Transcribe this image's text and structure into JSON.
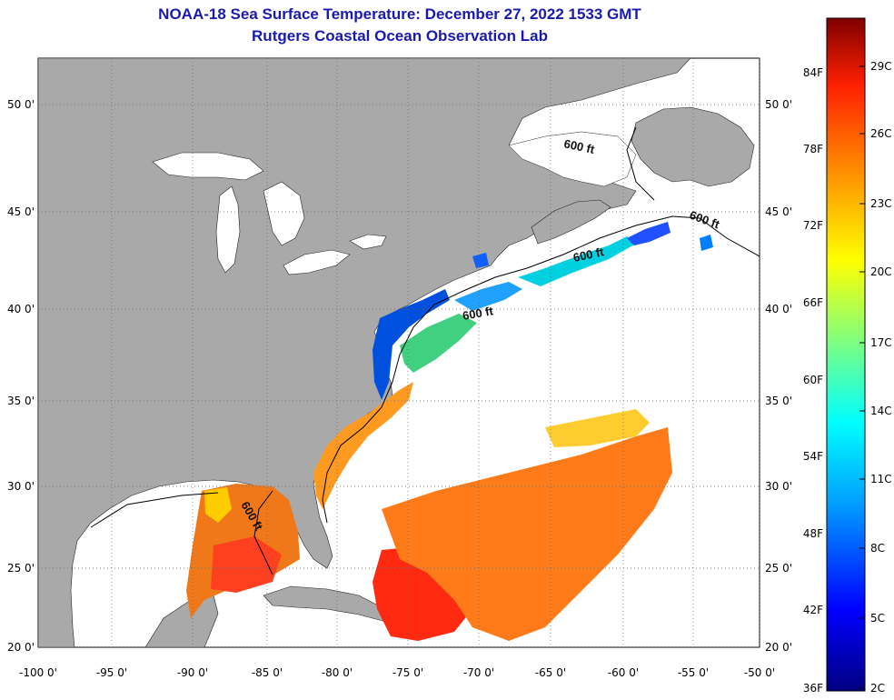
{
  "title": {
    "line1": "NOAA-18 Sea Surface Temperature:  December 27, 2022 1533 GMT",
    "line2": "Rutgers Coastal Ocean Observation Lab"
  },
  "axes": {
    "longitude_labels": [
      "-100 0'",
      "-95 0'",
      "-90 0'",
      "-85 0'",
      "-80 0'",
      "-75 0'",
      "-70 0'",
      "-65 0'",
      "-60 0'",
      "-55 0'",
      "-50 0'"
    ],
    "latitude_labels": [
      "50 0'",
      "45 0'",
      "40 0'",
      "35 0'",
      "30 0'",
      "25 0'",
      "20 0'"
    ]
  },
  "contour_labels": [
    "600 ft",
    "600 ft",
    "600 ft",
    "600 ft",
    "600 ft"
  ],
  "colorbar": {
    "fahrenheit_labels": [
      "84F",
      "78F",
      "72F",
      "66F",
      "60F",
      "54F",
      "48F",
      "42F",
      "36F"
    ],
    "celsius_labels": [
      "29C",
      "26C",
      "23C",
      "20C",
      "17C",
      "14C",
      "11C",
      "8C",
      "5C",
      "2C"
    ],
    "colors": [
      "#000080",
      "#0000ff",
      "#00a0ff",
      "#00ffff",
      "#7fff7f",
      "#ffff00",
      "#ff9900",
      "#ff2000",
      "#800000"
    ]
  },
  "colors": {
    "land": "#a9a9a9",
    "ocean_nodata": "#ffffff",
    "title": "#1a1ab0"
  }
}
